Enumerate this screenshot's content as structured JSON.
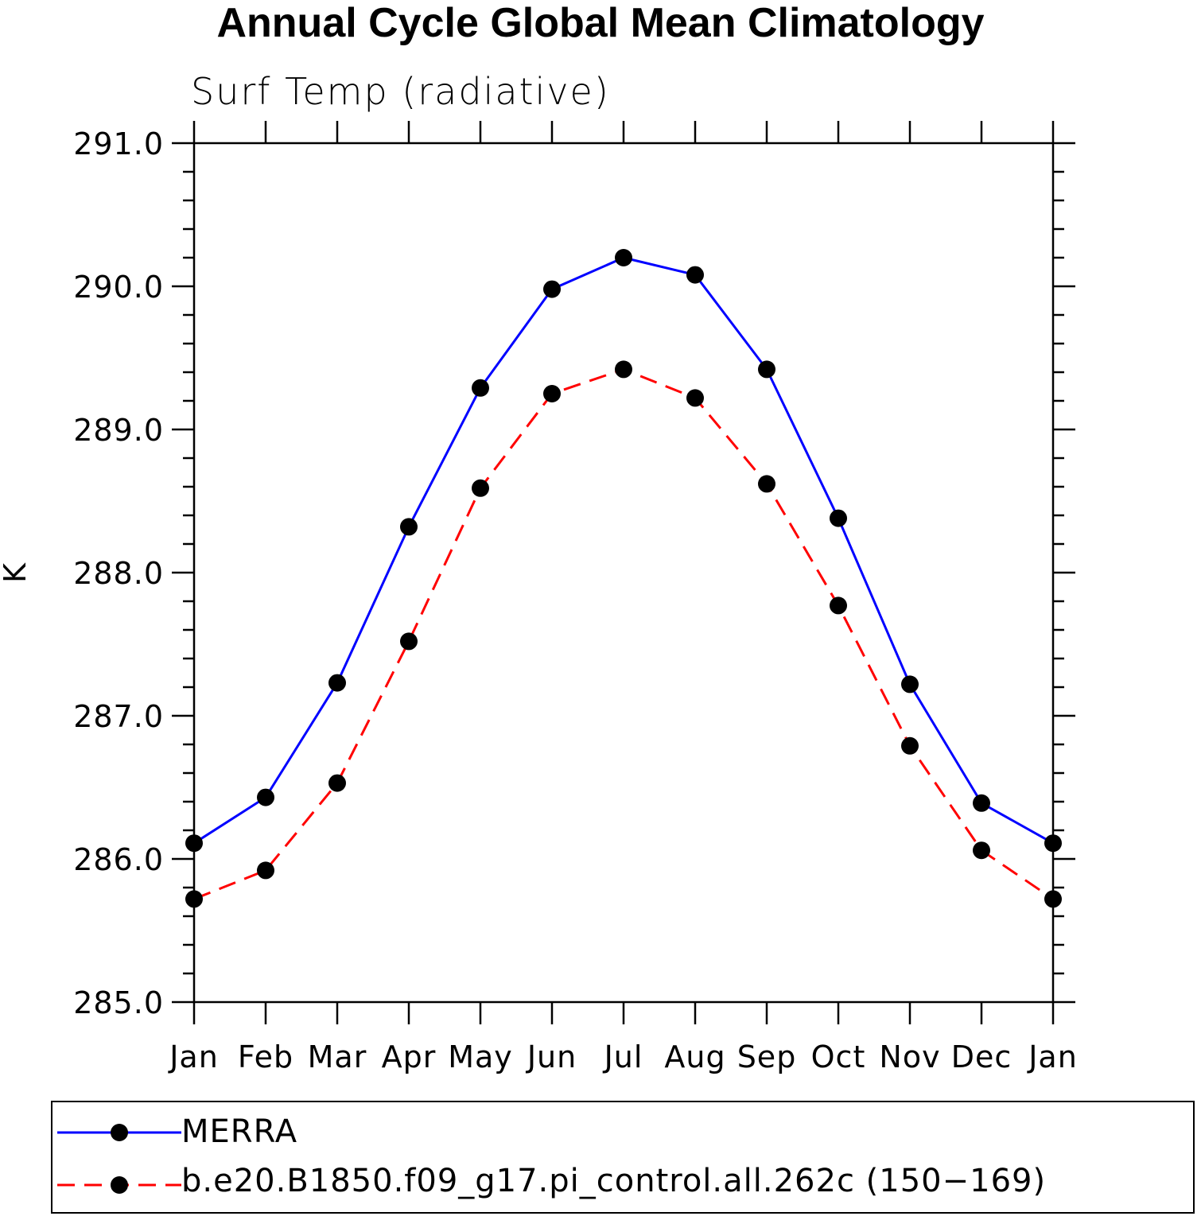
{
  "chart_data": {
    "type": "line",
    "title": "Annual Cycle Global Mean Climatology",
    "subtitle": "Surf Temp (radiative)",
    "ylabel": "K",
    "xlabel": "",
    "categories": [
      "Jan",
      "Feb",
      "Mar",
      "Apr",
      "May",
      "Jun",
      "Jul",
      "Aug",
      "Sep",
      "Oct",
      "Nov",
      "Dec",
      "Jan"
    ],
    "ylim": [
      285.0,
      291.0
    ],
    "yticks": [
      "285.0",
      "286.0",
      "287.0",
      "288.0",
      "289.0",
      "290.0",
      "291.0"
    ],
    "grid": false,
    "legend_position": "bottom",
    "series": [
      {
        "name": "MERRA",
        "color": "#0000ff",
        "line_style": "solid",
        "marker": "filled-circle",
        "values": [
          286.11,
          286.43,
          287.23,
          288.32,
          289.29,
          289.98,
          290.2,
          290.08,
          289.42,
          288.38,
          287.22,
          286.39,
          286.11
        ]
      },
      {
        "name": "b.e20.B1850.f09_g17.pi_control.all.262c (150−169)",
        "color": "#ff0000",
        "line_style": "dashed",
        "marker": "filled-circle",
        "values": [
          285.72,
          285.92,
          286.53,
          287.52,
          288.59,
          289.25,
          289.42,
          289.22,
          288.62,
          287.77,
          286.79,
          286.06,
          285.72
        ]
      }
    ]
  }
}
